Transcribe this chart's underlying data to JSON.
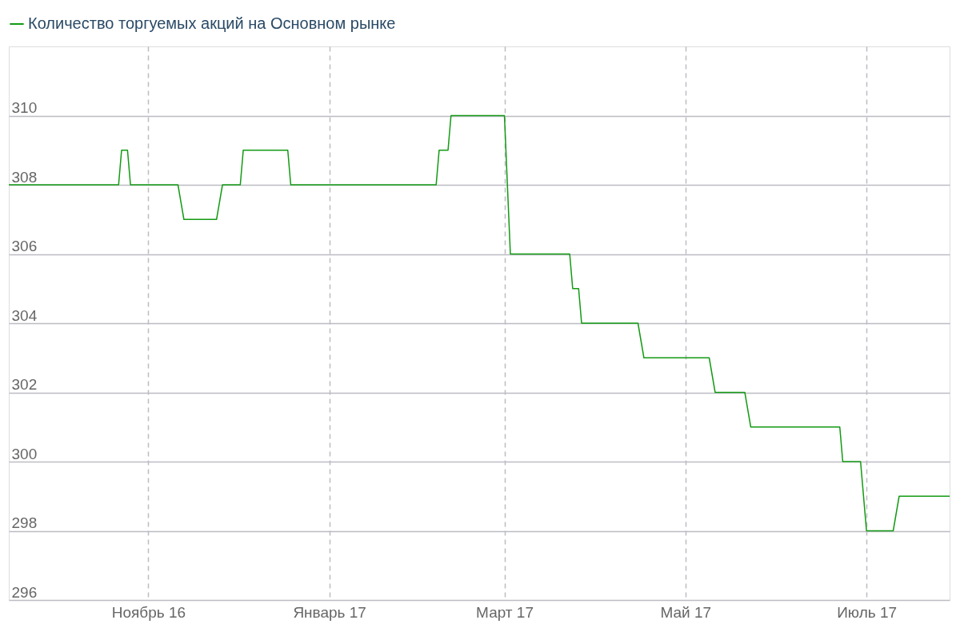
{
  "chart_data": {
    "type": "line",
    "legend": "top",
    "grid": true,
    "marker": "none",
    "line_style": "solid",
    "xlim": [
      "2016-09-15",
      "2017-07-29"
    ],
    "xticks": [
      {
        "value": "2016-11-01",
        "label": "Ноябрь 16"
      },
      {
        "value": "2017-01-01",
        "label": "Январь 17"
      },
      {
        "value": "2017-03-01",
        "label": "Март 17"
      },
      {
        "value": "2017-05-01",
        "label": "Май 17"
      },
      {
        "value": "2017-07-01",
        "label": "Июль 17"
      }
    ],
    "ylim": [
      296,
      312
    ],
    "yticks": [
      296,
      298,
      300,
      302,
      304,
      306,
      308,
      310
    ],
    "x": [
      "2016-09-15",
      "2016-10-22",
      "2016-10-23",
      "2016-10-25",
      "2016-10-26",
      "2016-11-11",
      "2016-11-13",
      "2016-11-24",
      "2016-11-26",
      "2016-12-02",
      "2016-12-03",
      "2016-12-18",
      "2016-12-19",
      "2017-02-06",
      "2017-02-07",
      "2017-02-10",
      "2017-02-11",
      "2017-03-01",
      "2017-03-03",
      "2017-03-23",
      "2017-03-24",
      "2017-03-26",
      "2017-03-27",
      "2017-04-15",
      "2017-04-17",
      "2017-05-09",
      "2017-05-11",
      "2017-05-21",
      "2017-05-23",
      "2017-06-22",
      "2017-06-23",
      "2017-06-29",
      "2017-07-01",
      "2017-07-10",
      "2017-07-12",
      "2017-07-29"
    ],
    "series": [
      {
        "name": "Количество торгуемых акций на Основном рынке",
        "color": "#139a13",
        "values": [
          308,
          308,
          309,
          309,
          308,
          308,
          307,
          307,
          308,
          308,
          309,
          309,
          308,
          308,
          309,
          309,
          310,
          310,
          306,
          306,
          305,
          305,
          304,
          304,
          303,
          303,
          302,
          302,
          301,
          301,
          300,
          300,
          298,
          298,
          299,
          299
        ]
      }
    ]
  }
}
